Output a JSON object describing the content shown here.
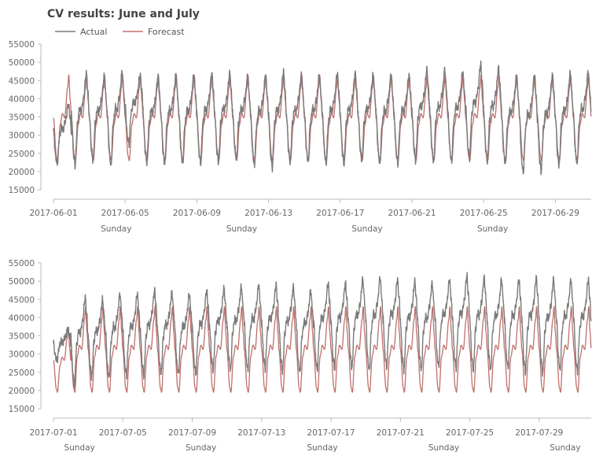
{
  "title": "CV results: June and July",
  "legend": {
    "placement": "top-left",
    "entries": [
      {
        "name": "Actual",
        "color": "#7a7a7a"
      },
      {
        "name": "Forecast",
        "color": "#c0706a"
      }
    ]
  },
  "colors": {
    "actual": "#7a7a7a",
    "forecast": "#c0706a",
    "axis": "#bbbbbb",
    "text": "#666666"
  },
  "chart_data": [
    {
      "type": "line",
      "month": "June",
      "xlim": [
        "2017-06-01",
        "2017-06-30 23:59"
      ],
      "ylim": [
        15000,
        55000
      ],
      "yticks": [
        15000,
        20000,
        25000,
        30000,
        35000,
        40000,
        45000,
        50000,
        55000
      ],
      "xticks": [
        "2017-06-01",
        "2017-06-05",
        "2017-06-09",
        "2017-06-13",
        "2017-06-17",
        "2017-06-21",
        "2017-06-25",
        "2017-06-29"
      ],
      "secondary_labels": [
        {
          "date": "2017-06-04",
          "label": "Sunday"
        },
        {
          "date": "2017-06-11",
          "label": "Sunday"
        },
        {
          "date": "2017-06-18",
          "label": "Sunday"
        },
        {
          "date": "2017-06-25",
          "label": "Sunday"
        }
      ],
      "grid": false,
      "series": [
        {
          "name": "Actual",
          "daily": [
            {
              "date": "2017-06-01",
              "min": 22000,
              "max": 38500
            },
            {
              "date": "2017-06-02",
              "min": 21500,
              "max": 47000
            },
            {
              "date": "2017-06-03",
              "min": 23000,
              "max": 46000
            },
            {
              "date": "2017-06-04",
              "min": 21500,
              "max": 47500
            },
            {
              "date": "2017-06-05",
              "min": 27500,
              "max": 46500
            },
            {
              "date": "2017-06-06",
              "min": 22500,
              "max": 46000
            },
            {
              "date": "2017-06-07",
              "min": 22000,
              "max": 46500
            },
            {
              "date": "2017-06-08",
              "min": 22000,
              "max": 46500
            },
            {
              "date": "2017-06-09",
              "min": 22000,
              "max": 47000
            },
            {
              "date": "2017-06-10",
              "min": 22500,
              "max": 47000
            },
            {
              "date": "2017-06-11",
              "min": 23500,
              "max": 46000
            },
            {
              "date": "2017-06-12",
              "min": 21500,
              "max": 46500
            },
            {
              "date": "2017-06-13",
              "min": 21000,
              "max": 47500
            },
            {
              "date": "2017-06-14",
              "min": 22500,
              "max": 46500
            },
            {
              "date": "2017-06-15",
              "min": 22500,
              "max": 46500
            },
            {
              "date": "2017-06-16",
              "min": 22000,
              "max": 47000
            },
            {
              "date": "2017-06-17",
              "min": 22000,
              "max": 47000
            },
            {
              "date": "2017-06-18",
              "min": 23000,
              "max": 46500
            },
            {
              "date": "2017-06-19",
              "min": 22000,
              "max": 46500
            },
            {
              "date": "2017-06-20",
              "min": 22000,
              "max": 46500
            },
            {
              "date": "2017-06-21",
              "min": 23000,
              "max": 48000
            },
            {
              "date": "2017-06-22",
              "min": 22500,
              "max": 48000
            },
            {
              "date": "2017-06-23",
              "min": 22500,
              "max": 47500
            },
            {
              "date": "2017-06-24",
              "min": 23500,
              "max": 49500
            },
            {
              "date": "2017-06-25",
              "min": 22500,
              "max": 48500
            },
            {
              "date": "2017-06-26",
              "min": 22000,
              "max": 46000
            },
            {
              "date": "2017-06-27",
              "min": 19500,
              "max": 46500
            },
            {
              "date": "2017-06-28",
              "min": 20000,
              "max": 46500
            },
            {
              "date": "2017-06-29",
              "min": 21500,
              "max": 47000
            },
            {
              "date": "2017-06-30",
              "min": 22000,
              "max": 47500
            }
          ]
        },
        {
          "name": "Forecast",
          "daily": [
            {
              "date": "2017-06-01",
              "min": 23000,
              "max": 46500
            },
            {
              "date": "2017-06-02",
              "min": 23000,
              "max": 46500
            },
            {
              "date": "2017-06-03",
              "min": 23000,
              "max": 46500
            },
            {
              "date": "2017-06-04",
              "min": 23000,
              "max": 46500
            },
            {
              "date": "2017-06-05",
              "min": 23000,
              "max": 46500
            },
            {
              "date": "2017-06-06",
              "min": 23000,
              "max": 46500
            },
            {
              "date": "2017-06-07",
              "min": 23000,
              "max": 46500
            },
            {
              "date": "2017-06-08",
              "min": 23000,
              "max": 46500
            },
            {
              "date": "2017-06-09",
              "min": 23000,
              "max": 46500
            },
            {
              "date": "2017-06-10",
              "min": 23000,
              "max": 46500
            },
            {
              "date": "2017-06-11",
              "min": 23000,
              "max": 46500
            },
            {
              "date": "2017-06-12",
              "min": 23000,
              "max": 46500
            },
            {
              "date": "2017-06-13",
              "min": 23000,
              "max": 46500
            },
            {
              "date": "2017-06-14",
              "min": 23000,
              "max": 46500
            },
            {
              "date": "2017-06-15",
              "min": 23000,
              "max": 46500
            },
            {
              "date": "2017-06-16",
              "min": 23000,
              "max": 46500
            },
            {
              "date": "2017-06-17",
              "min": 23000,
              "max": 46500
            },
            {
              "date": "2017-06-18",
              "min": 23000,
              "max": 46500
            },
            {
              "date": "2017-06-19",
              "min": 23000,
              "max": 46500
            },
            {
              "date": "2017-06-20",
              "min": 23000,
              "max": 46500
            },
            {
              "date": "2017-06-21",
              "min": 23000,
              "max": 46500
            },
            {
              "date": "2017-06-22",
              "min": 23000,
              "max": 46500
            },
            {
              "date": "2017-06-23",
              "min": 23000,
              "max": 46500
            },
            {
              "date": "2017-06-24",
              "min": 23000,
              "max": 46500
            },
            {
              "date": "2017-06-25",
              "min": 23000,
              "max": 46500
            },
            {
              "date": "2017-06-26",
              "min": 23000,
              "max": 46500
            },
            {
              "date": "2017-06-27",
              "min": 23000,
              "max": 46500
            },
            {
              "date": "2017-06-28",
              "min": 23000,
              "max": 46500
            },
            {
              "date": "2017-06-29",
              "min": 23000,
              "max": 46500
            },
            {
              "date": "2017-06-30",
              "min": 23000,
              "max": 46500
            }
          ]
        }
      ]
    },
    {
      "type": "line",
      "month": "July",
      "xlim": [
        "2017-07-01",
        "2017-07-31 23:59"
      ],
      "ylim": [
        15000,
        55000
      ],
      "yticks": [
        15000,
        20000,
        25000,
        30000,
        35000,
        40000,
        45000,
        50000,
        55000
      ],
      "xticks": [
        "2017-07-01",
        "2017-07-05",
        "2017-07-09",
        "2017-07-13",
        "2017-07-17",
        "2017-07-21",
        "2017-07-25",
        "2017-07-29"
      ],
      "secondary_labels": [
        {
          "date": "2017-07-02",
          "label": "Sunday"
        },
        {
          "date": "2017-07-09",
          "label": "Sunday"
        },
        {
          "date": "2017-07-16",
          "label": "Sunday"
        },
        {
          "date": "2017-07-23",
          "label": "Sunday"
        },
        {
          "date": "2017-07-30",
          "label": "Sunday"
        }
      ],
      "grid": false,
      "series": [
        {
          "name": "Actual",
          "daily": [
            {
              "date": "2017-07-01",
              "min": 28000,
              "max": 37000
            },
            {
              "date": "2017-07-02",
              "min": 21500,
              "max": 45500
            },
            {
              "date": "2017-07-03",
              "min": 23500,
              "max": 45000
            },
            {
              "date": "2017-07-04",
              "min": 23500,
              "max": 46500
            },
            {
              "date": "2017-07-05",
              "min": 24000,
              "max": 46500
            },
            {
              "date": "2017-07-06",
              "min": 24000,
              "max": 47500
            },
            {
              "date": "2017-07-07",
              "min": 24500,
              "max": 47000
            },
            {
              "date": "2017-07-08",
              "min": 24500,
              "max": 46500
            },
            {
              "date": "2017-07-09",
              "min": 24500,
              "max": 47500
            },
            {
              "date": "2017-07-10",
              "min": 25500,
              "max": 48000
            },
            {
              "date": "2017-07-11",
              "min": 25500,
              "max": 48500
            },
            {
              "date": "2017-07-12",
              "min": 25500,
              "max": 49000
            },
            {
              "date": "2017-07-13",
              "min": 26000,
              "max": 49000
            },
            {
              "date": "2017-07-14",
              "min": 25000,
              "max": 48500
            },
            {
              "date": "2017-07-15",
              "min": 25000,
              "max": 47500
            },
            {
              "date": "2017-07-16",
              "min": 25500,
              "max": 49500
            },
            {
              "date": "2017-07-17",
              "min": 26000,
              "max": 49500
            },
            {
              "date": "2017-07-18",
              "min": 26000,
              "max": 50500
            },
            {
              "date": "2017-07-19",
              "min": 25500,
              "max": 51000
            },
            {
              "date": "2017-07-20",
              "min": 26500,
              "max": 50500
            },
            {
              "date": "2017-07-21",
              "min": 25500,
              "max": 50000
            },
            {
              "date": "2017-07-22",
              "min": 25500,
              "max": 49500
            },
            {
              "date": "2017-07-23",
              "min": 26500,
              "max": 50500
            },
            {
              "date": "2017-07-24",
              "min": 26000,
              "max": 51500
            },
            {
              "date": "2017-07-25",
              "min": 25500,
              "max": 51000
            },
            {
              "date": "2017-07-26",
              "min": 25500,
              "max": 50500
            },
            {
              "date": "2017-07-27",
              "min": 26000,
              "max": 50500
            },
            {
              "date": "2017-07-28",
              "min": 25000,
              "max": 51000
            },
            {
              "date": "2017-07-29",
              "min": 24500,
              "max": 50500
            },
            {
              "date": "2017-07-30",
              "min": 25500,
              "max": 50500
            },
            {
              "date": "2017-07-31",
              "min": 25000,
              "max": 50500
            }
          ]
        },
        {
          "name": "Forecast",
          "daily": [
            {
              "date": "2017-07-01",
              "min": 19500,
              "max": 37000
            },
            {
              "date": "2017-07-02",
              "min": 19500,
              "max": 43000
            },
            {
              "date": "2017-07-03",
              "min": 19500,
              "max": 43000
            },
            {
              "date": "2017-07-04",
              "min": 19500,
              "max": 43000
            },
            {
              "date": "2017-07-05",
              "min": 19500,
              "max": 43000
            },
            {
              "date": "2017-07-06",
              "min": 19500,
              "max": 43000
            },
            {
              "date": "2017-07-07",
              "min": 19500,
              "max": 43000
            },
            {
              "date": "2017-07-08",
              "min": 19500,
              "max": 43000
            },
            {
              "date": "2017-07-09",
              "min": 19500,
              "max": 43000
            },
            {
              "date": "2017-07-10",
              "min": 19500,
              "max": 43000
            },
            {
              "date": "2017-07-11",
              "min": 19500,
              "max": 43000
            },
            {
              "date": "2017-07-12",
              "min": 19500,
              "max": 43000
            },
            {
              "date": "2017-07-13",
              "min": 19500,
              "max": 43000
            },
            {
              "date": "2017-07-14",
              "min": 19500,
              "max": 43000
            },
            {
              "date": "2017-07-15",
              "min": 19500,
              "max": 43000
            },
            {
              "date": "2017-07-16",
              "min": 19500,
              "max": 43000
            },
            {
              "date": "2017-07-17",
              "min": 19500,
              "max": 43000
            },
            {
              "date": "2017-07-18",
              "min": 19500,
              "max": 43000
            },
            {
              "date": "2017-07-19",
              "min": 19500,
              "max": 43000
            },
            {
              "date": "2017-07-20",
              "min": 19500,
              "max": 43000
            },
            {
              "date": "2017-07-21",
              "min": 19500,
              "max": 43000
            },
            {
              "date": "2017-07-22",
              "min": 19500,
              "max": 43000
            },
            {
              "date": "2017-07-23",
              "min": 19500,
              "max": 43000
            },
            {
              "date": "2017-07-24",
              "min": 19500,
              "max": 43000
            },
            {
              "date": "2017-07-25",
              "min": 19500,
              "max": 43000
            },
            {
              "date": "2017-07-26",
              "min": 19500,
              "max": 43000
            },
            {
              "date": "2017-07-27",
              "min": 19500,
              "max": 43000
            },
            {
              "date": "2017-07-28",
              "min": 19500,
              "max": 43000
            },
            {
              "date": "2017-07-29",
              "min": 19500,
              "max": 43000
            },
            {
              "date": "2017-07-30",
              "min": 19500,
              "max": 43000
            },
            {
              "date": "2017-07-31",
              "min": 19500,
              "max": 43000
            }
          ]
        }
      ]
    }
  ]
}
